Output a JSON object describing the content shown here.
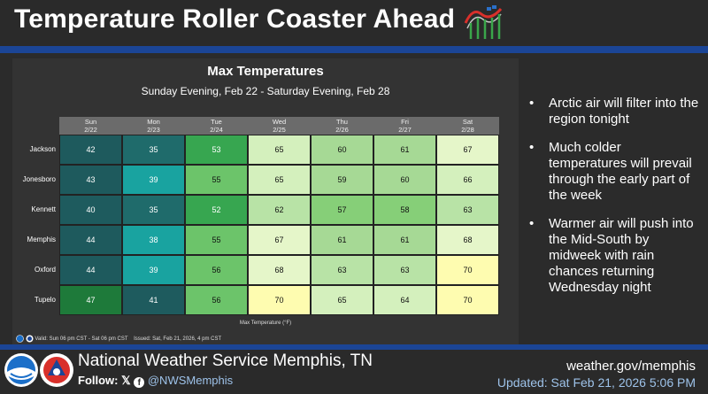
{
  "header": {
    "title": "Temperature Roller Coaster Ahead",
    "icon": "roller-coaster-icon"
  },
  "chart": {
    "title": "Max Temperatures",
    "subtitle": "Sunday Evening, Feb 22 - Saturday Evening, Feb 28",
    "legend_label": "Max Temperature (°F)",
    "valid_text": "Valid: Sun 06 pm CST - Sat 06 pm CST",
    "issued_text": "Issued: Sat, Feb 21, 2026, 4 pm CST"
  },
  "chart_data": {
    "type": "table",
    "title": "Max Temperatures",
    "columns": [
      {
        "day": "Sun",
        "date": "2/22"
      },
      {
        "day": "Mon",
        "date": "2/23"
      },
      {
        "day": "Tue",
        "date": "2/24"
      },
      {
        "day": "Wed",
        "date": "2/25"
      },
      {
        "day": "Thu",
        "date": "2/26"
      },
      {
        "day": "Fri",
        "date": "2/27"
      },
      {
        "day": "Sat",
        "date": "2/28"
      }
    ],
    "rows": [
      {
        "city": "Jackson",
        "values": [
          42,
          35,
          53,
          65,
          60,
          61,
          67
        ]
      },
      {
        "city": "Jonesboro",
        "values": [
          43,
          39,
          55,
          65,
          59,
          60,
          66
        ]
      },
      {
        "city": "Kennett",
        "values": [
          40,
          35,
          52,
          62,
          57,
          58,
          63
        ]
      },
      {
        "city": "Memphis",
        "values": [
          44,
          38,
          55,
          67,
          61,
          61,
          68
        ]
      },
      {
        "city": "Oxford",
        "values": [
          44,
          39,
          56,
          68,
          63,
          63,
          70
        ]
      },
      {
        "city": "Tupelo",
        "values": [
          47,
          41,
          56,
          70,
          65,
          64,
          70
        ]
      }
    ],
    "unit": "°F"
  },
  "bullets": [
    "Arctic air will filter into the region tonight",
    "Much colder temperatures will prevail through the early part of the week",
    "Warmer air will push into the Mid-South by midweek with rain chances returning Wednesday night"
  ],
  "footer": {
    "office": "National Weather Service Memphis, TN",
    "follow_label": "Follow:",
    "handle": "@NWSMemphis",
    "url": "weather.gov/memphis",
    "updated": "Updated: Sat Feb 21, 2026 5:06 PM"
  },
  "colors": {
    "band": "#1b4596",
    "accent_text": "#9ec3ea"
  }
}
